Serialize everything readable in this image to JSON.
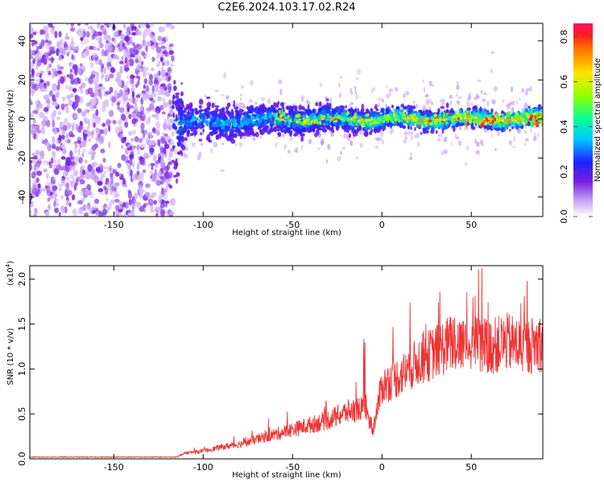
{
  "title": "C2E6.2024.103.17.02.R24",
  "chart_data": [
    {
      "type": "heatmap",
      "xlabel": "Height of straight line (km)",
      "ylabel": "Frequency (Hz)",
      "xlim": [
        -197,
        90
      ],
      "ylim": [
        -50,
        49
      ],
      "xticks": [
        -150,
        -100,
        -50,
        0,
        50
      ],
      "yticks": [
        -40,
        -20,
        0,
        20,
        40
      ],
      "colorbar": {
        "label": "Normalized spectral amplitude",
        "range": [
          0.0,
          0.86
        ],
        "ticks": [
          0.0,
          0.2,
          0.4,
          0.6,
          0.8
        ]
      },
      "description_points": [
        {
          "x": -197,
          "y_center": 0,
          "y_spread": 49,
          "amplitude": 0.05
        },
        {
          "x": -120,
          "y_center": 0,
          "y_spread": 49,
          "amplitude": 0.06
        },
        {
          "x": -110,
          "y_center": -2,
          "y_spread": 10,
          "amplitude": 0.2
        },
        {
          "x": -50,
          "y_center": 0,
          "y_spread": 8,
          "amplitude": 0.25
        },
        {
          "x": 0,
          "y_center": 0,
          "y_spread": 6,
          "amplitude": 0.35
        },
        {
          "x": 50,
          "y_center": 0,
          "y_spread": 5,
          "amplitude": 0.5
        },
        {
          "x": 90,
          "y_center": 0,
          "y_spread": 5,
          "amplitude": 0.6
        }
      ]
    },
    {
      "type": "line",
      "xlabel": "Height of straight line (km)",
      "ylabel": "SNR (10 * v/v)",
      "multiplier": "(x10",
      "multiplier_exp": "4",
      "xlim": [
        -197,
        90
      ],
      "ylim": [
        0,
        2.15
      ],
      "xticks": [
        -150,
        -100,
        -50,
        0,
        50
      ],
      "yticks": [
        0.0,
        0.5,
        1.0,
        1.5,
        2.0
      ],
      "ytick_labels": [
        "0.0",
        "0.5",
        "1.0",
        "1.5",
        "2.0"
      ],
      "series": [
        {
          "color": "#ee3333",
          "x": [
            -197,
            -150,
            -115,
            -110,
            -100,
            -90,
            -80,
            -70,
            -60,
            -50,
            -40,
            -30,
            -20,
            -15,
            -10,
            -5,
            0,
            10,
            20,
            30,
            40,
            50,
            60,
            70,
            80,
            90
          ],
          "y": [
            0.02,
            0.02,
            0.02,
            0.06,
            0.08,
            0.12,
            0.15,
            0.2,
            0.25,
            0.3,
            0.35,
            0.4,
            0.48,
            0.5,
            0.55,
            0.3,
            0.75,
            0.85,
            1.0,
            1.1,
            1.2,
            1.2,
            1.15,
            1.2,
            1.15,
            1.2
          ]
        }
      ]
    }
  ]
}
